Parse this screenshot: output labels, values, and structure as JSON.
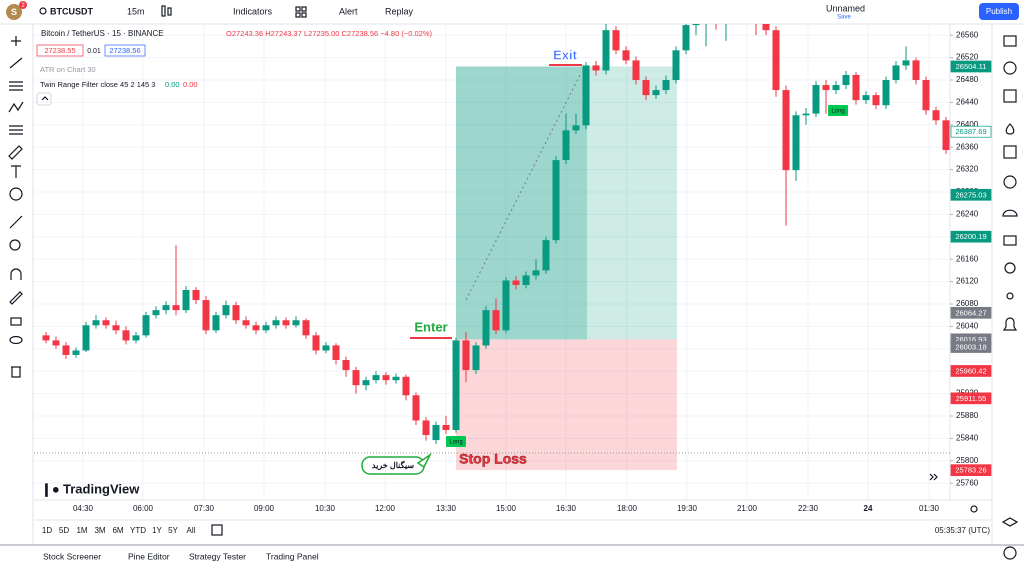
{
  "toolbar": {
    "avatar": "S",
    "badge": "2",
    "symbol": "BTCUSDT",
    "interval": "15m",
    "indicators": "Indicators",
    "alert": "Alert",
    "replay": "Replay",
    "layout_name": "Unnamed",
    "layout_status": "Save",
    "publish": "Publish"
  },
  "legend": {
    "title": "Bitcoin / TetherUS · 15 · BINANCE",
    "ohlc": "O27243.36 H27243.37 L27235.00 C27238.56 −4.80 (−0.02%)",
    "bid": "27238.55",
    "spread": "0.01",
    "ask": "27238.56",
    "atr": "ATR on Chart 30",
    "indicator": "Twin Range Filter close 45 2 145 3",
    "ind_v1": "0.00",
    "ind_v2": "0.00"
  },
  "chart_data": {
    "type": "candlestick",
    "up_color": "#089981",
    "down_color": "#f23645",
    "candles": [
      [
        26024,
        26030,
        26010,
        26015
      ],
      [
        26015,
        26022,
        26000,
        26006
      ],
      [
        26006,
        26012,
        25982,
        25989
      ],
      [
        25989,
        26002,
        25984,
        25997
      ],
      [
        25997,
        26048,
        25994,
        26042
      ],
      [
        26042,
        26060,
        26036,
        26051
      ],
      [
        26051,
        26056,
        26036,
        26042
      ],
      [
        26042,
        26050,
        26026,
        26033
      ],
      [
        26033,
        26040,
        26008,
        26015
      ],
      [
        26015,
        26030,
        26010,
        26024
      ],
      [
        26024,
        26066,
        26020,
        26060
      ],
      [
        26060,
        26076,
        26054,
        26069
      ],
      [
        26069,
        26085,
        26062,
        26078
      ],
      [
        26078,
        26185,
        26060,
        26069
      ],
      [
        26069,
        26112,
        26064,
        26105
      ],
      [
        26105,
        26110,
        26080,
        26087
      ],
      [
        26087,
        26094,
        26026,
        26033
      ],
      [
        26033,
        26066,
        26028,
        26060
      ],
      [
        26060,
        26086,
        26054,
        26078
      ],
      [
        26078,
        26084,
        26044,
        26051
      ],
      [
        26051,
        26058,
        26036,
        26042
      ],
      [
        26042,
        26048,
        26026,
        26033
      ],
      [
        26033,
        26048,
        26028,
        26042
      ],
      [
        26042,
        26058,
        26036,
        26051
      ],
      [
        26051,
        26056,
        26036,
        26042
      ],
      [
        26042,
        26058,
        26038,
        26051
      ],
      [
        26051,
        26054,
        26018,
        26024
      ],
      [
        26024,
        26030,
        25990,
        25997
      ],
      [
        25997,
        26012,
        25992,
        26006
      ],
      [
        26006,
        26010,
        25972,
        25980
      ],
      [
        25980,
        25986,
        25950,
        25962
      ],
      [
        25962,
        25968,
        25920,
        25935
      ],
      [
        25935,
        25950,
        25926,
        25944
      ],
      [
        25944,
        25960,
        25938,
        25953
      ],
      [
        25953,
        25958,
        25936,
        25944
      ],
      [
        25944,
        25956,
        25938,
        25950
      ],
      [
        25950,
        25954,
        25908,
        25917
      ],
      [
        25917,
        25922,
        25864,
        25872
      ],
      [
        25872,
        25878,
        25836,
        25846
      ],
      [
        25837,
        25870,
        25830,
        25864
      ],
      [
        25864,
        25880,
        25848,
        25855
      ],
      [
        25855,
        26020,
        25850,
        26015
      ],
      [
        26015,
        26030,
        25940,
        25962
      ],
      [
        25962,
        26012,
        25955,
        26006
      ],
      [
        26006,
        26076,
        26000,
        26069
      ],
      [
        26069,
        26090,
        26026,
        26033
      ],
      [
        26033,
        26128,
        26028,
        26122
      ],
      [
        26122,
        26130,
        26106,
        26114
      ],
      [
        26114,
        26138,
        26108,
        26131
      ],
      [
        26131,
        26160,
        26124,
        26140
      ],
      [
        26140,
        26200,
        26134,
        26194
      ],
      [
        26194,
        26344,
        26188,
        26337
      ],
      [
        26337,
        26420,
        26330,
        26390
      ],
      [
        26390,
        26420,
        26384,
        26399
      ],
      [
        26399,
        26512,
        26392,
        26506
      ],
      [
        26506,
        26514,
        26488,
        26497
      ],
      [
        26497,
        26600,
        26490,
        26569
      ],
      [
        26569,
        26576,
        26526,
        26533
      ],
      [
        26533,
        26540,
        26508,
        26515
      ],
      [
        26515,
        26522,
        26472,
        26480
      ],
      [
        26480,
        26486,
        26444,
        26453
      ],
      [
        26453,
        26470,
        26446,
        26462
      ],
      [
        26462,
        26488,
        26455,
        26480
      ],
      [
        26480,
        26540,
        26474,
        26533
      ],
      [
        26533,
        26600,
        26526,
        26578
      ],
      [
        26578,
        26610,
        26560,
        26600
      ],
      [
        26600,
        26620,
        26540,
        26610
      ],
      [
        26610,
        26620,
        26570,
        26590
      ],
      [
        26590,
        26610,
        26550,
        26600
      ],
      [
        26600,
        26630,
        26594,
        26620
      ],
      [
        26620,
        26626,
        26584,
        26590
      ],
      [
        26590,
        26596,
        26560,
        26580
      ],
      [
        26580,
        26620,
        26560,
        26569
      ],
      [
        26569,
        26576,
        26450,
        26462
      ],
      [
        26462,
        26470,
        26220,
        26319
      ],
      [
        26319,
        26424,
        26300,
        26417
      ],
      [
        26417,
        26430,
        26400,
        26420
      ],
      [
        26420,
        26478,
        26414,
        26471
      ],
      [
        26471,
        26480,
        26420,
        26462
      ],
      [
        26462,
        26478,
        26455,
        26471
      ],
      [
        26471,
        26496,
        26464,
        26489
      ],
      [
        26489,
        26494,
        26436,
        26444
      ],
      [
        26444,
        26460,
        26437,
        26453
      ],
      [
        26453,
        26458,
        26428,
        26435
      ],
      [
        26435,
        26486,
        26428,
        26480
      ],
      [
        26480,
        26514,
        26474,
        26506
      ],
      [
        26506,
        26540,
        26498,
        26515
      ],
      [
        26515,
        26520,
        26472,
        26480
      ],
      [
        26480,
        26486,
        26418,
        26426
      ],
      [
        26426,
        26432,
        26400,
        26408
      ],
      [
        26408,
        26414,
        26348,
        26355
      ]
    ],
    "ylim": [
      25730,
      26580
    ],
    "yticks": [
      25760,
      25800,
      25840,
      25880,
      25920,
      25960,
      26000,
      26040,
      26080,
      26120,
      26160,
      26200,
      26240,
      26280,
      26320,
      26360,
      26400,
      26440,
      26480,
      26520,
      26560
    ],
    "xticks": [
      "04:30",
      "06:00",
      "07:30",
      "09:00",
      "10:30",
      "12:00",
      "13:30",
      "15:00",
      "16:30",
      "18:00",
      "19:30",
      "21:00",
      "22:30",
      "24",
      "01:30"
    ],
    "grid": true,
    "price_labels": [
      {
        "value": 26504.11,
        "style": "green"
      },
      {
        "value": 26387.69,
        "style": "outline"
      },
      {
        "value": 26275.03,
        "style": "green"
      },
      {
        "value": 26200.19,
        "style": "green"
      },
      {
        "value": 26064.27,
        "style": "gray"
      },
      {
        "value": 26016.93,
        "style": "gray"
      },
      {
        "value": 26003.18,
        "style": "gray"
      },
      {
        "value": 25960.42,
        "style": "red"
      },
      {
        "value": 25911.55,
        "style": "red"
      },
      {
        "value": 25783.26,
        "style": "red"
      }
    ],
    "annotations": {
      "exit": "Exit",
      "enter": "Enter",
      "stop": "Stop Loss",
      "signal": "سیگنال خرید",
      "long1": "Long",
      "long2": "Long"
    },
    "watermark": "TradingView"
  },
  "bottom": {
    "ranges": [
      "1D",
      "5D",
      "1M",
      "3M",
      "6M",
      "YTD",
      "1Y",
      "5Y",
      "All"
    ],
    "clock": "05:35:37 (UTC)",
    "tabs": [
      "Stock Screener",
      "Pine Editor",
      "Strategy Tester",
      "Trading Panel"
    ]
  }
}
